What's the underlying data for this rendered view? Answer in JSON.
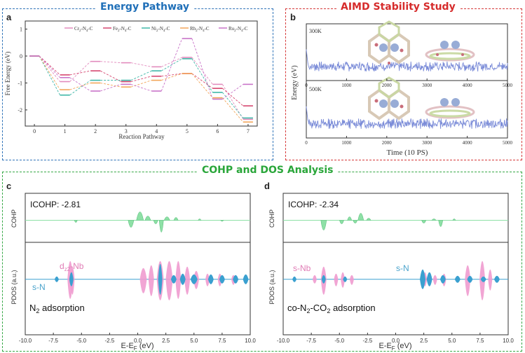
{
  "panels": {
    "energy": {
      "title": "Energy Pathway",
      "color": "#1f6fb8"
    },
    "aimd": {
      "title": "AIMD Stability Study",
      "color": "#d62c2c"
    },
    "cohp": {
      "title": "COHP and DOS Analysis",
      "color": "#2aa63a"
    }
  },
  "labels": {
    "a": "a",
    "b": "b",
    "c": "c",
    "d": "d"
  },
  "chart_data": [
    {
      "id": "energy_pathway",
      "type": "line",
      "xlabel": "Reaction Pathway",
      "ylabel": "Free Energy (eV)",
      "categories": [
        0,
        1,
        2,
        3,
        4,
        5,
        6,
        7
      ],
      "xlim": [
        -0.3,
        7.3
      ],
      "ylim": [
        -2.6,
        1.3
      ],
      "yticks": [
        -2,
        -1,
        0,
        1
      ],
      "series": [
        {
          "name": "Cr2-N4-C",
          "label_parts": [
            "Cr",
            "2",
            "-N",
            "4",
            "-C"
          ],
          "color": "#e28bbd",
          "values": [
            0,
            -0.95,
            -0.2,
            -0.25,
            -0.4,
            -0.05,
            -1.05,
            -2.35
          ]
        },
        {
          "name": "Fe2-N4-C",
          "label_parts": [
            "Fe",
            "2",
            "-N",
            "4",
            "-C"
          ],
          "color": "#d6466f",
          "values": [
            0,
            -0.7,
            -0.55,
            -0.95,
            -0.75,
            -0.65,
            -1.2,
            -1.85
          ]
        },
        {
          "name": "Ni2-N4-C",
          "label_parts": [
            "Ni",
            "2",
            "-N",
            "4",
            "-C"
          ],
          "color": "#3fb7a8",
          "values": [
            0,
            -1.45,
            -0.9,
            -0.9,
            -0.55,
            -0.1,
            -1.35,
            -2.3
          ]
        },
        {
          "name": "Rh2-N4-C",
          "label_parts": [
            "Rh",
            "2",
            "-N",
            "4",
            "-C"
          ],
          "color": "#f2a65a",
          "values": [
            0,
            -1.25,
            -1.0,
            -1.15,
            -0.9,
            -0.65,
            -1.55,
            -2.45
          ]
        },
        {
          "name": "Ru2-N4-C",
          "label_parts": [
            "Ru",
            "2",
            "-N",
            "4",
            "-C"
          ],
          "color": "#c873c8",
          "values": [
            0,
            -0.8,
            -1.3,
            -1.05,
            -1.3,
            0.65,
            -1.6,
            -1.05
          ]
        }
      ]
    },
    {
      "id": "aimd",
      "type": "line",
      "xlabel": "Time (10 PS)",
      "ylabel": "Energy (eV)",
      "xlim": [
        0,
        5000
      ],
      "xticks": [
        0,
        1000,
        2000,
        3000,
        4000,
        5000
      ],
      "color": "#7b8cd8",
      "subplots": [
        {
          "label": "300K",
          "description": "energy drops sharply at start then fluctuates around a steady baseline"
        },
        {
          "label": "500K",
          "description": "energy drops sharply at start then fluctuates around a steady baseline"
        }
      ]
    },
    {
      "id": "cohp_dos_c",
      "type": "area",
      "icohp_label": "ICOHP: -2.81",
      "annotation_main": "N",
      "annotation_sub": "2",
      "annotation_rest": " adsorption",
      "species_labels": [
        {
          "text": "d",
          "sub": "z2",
          "rest": "-Nb",
          "color": "#e07cb5"
        },
        {
          "text": "s-N",
          "sub": "",
          "rest": "",
          "color": "#4aa3cc"
        }
      ],
      "xlabel_main": "E-E",
      "xlabel_sub": "F",
      "xlabel_rest": " (eV)",
      "ylabel_top": "COHP",
      "ylabel_bottom": "PDOS (a.u.)",
      "xlim": [
        -10,
        10
      ],
      "xticks": [
        "-10.0",
        "-7.5",
        "-5.0",
        "-2.5",
        "0.0",
        "2.5",
        "5.0",
        "7.5",
        "10.0"
      ],
      "cohp_color": "#8ee0a6",
      "pdos_colors": [
        "#f09bcf",
        "#3aa0d0"
      ]
    },
    {
      "id": "cohp_dos_d",
      "type": "area",
      "icohp_label": "ICOHP: -2.34",
      "annotation_pre": "co-N",
      "annotation_sub1": "2",
      "annotation_mid": "-CO",
      "annotation_sub2": "2",
      "annotation_rest": " adsorption",
      "species_labels": [
        {
          "text": "s-Nb",
          "color": "#e07cb5"
        },
        {
          "text": "s-N",
          "color": "#4aa3cc"
        }
      ],
      "xlabel_main": "E-E",
      "xlabel_sub": "F",
      "xlabel_rest": " (eV)",
      "ylabel_top": "COHP",
      "ylabel_bottom": "PDOS (a.u.)",
      "xlim": [
        -10,
        10
      ],
      "xticks": [
        "-10.0",
        "-7.5",
        "-5.0",
        "-2.5",
        "0.0",
        "2.5",
        "5.0",
        "7.5",
        "10.0"
      ],
      "cohp_color": "#8ee0a6",
      "pdos_colors": [
        "#f09bcf",
        "#3aa0d0"
      ]
    }
  ]
}
